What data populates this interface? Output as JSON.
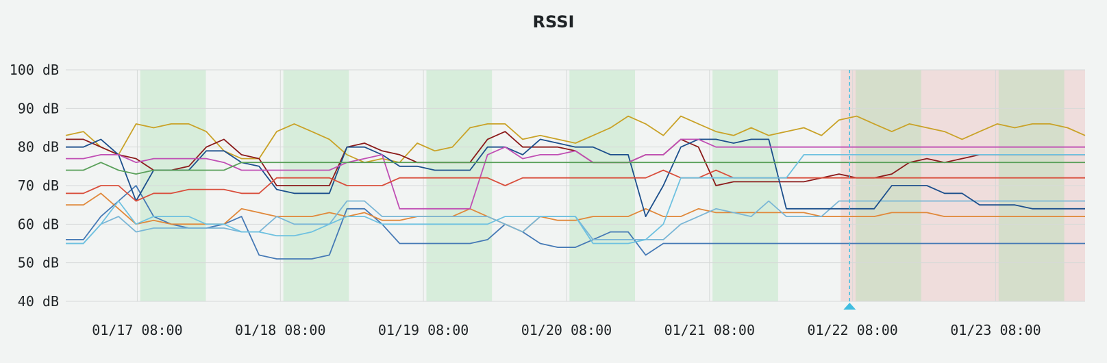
{
  "chart_data": {
    "type": "line",
    "title": "RSSI",
    "xlabel": "",
    "ylabel": "",
    "y_unit": "dB",
    "ylim": [
      40,
      100
    ],
    "y_ticks": [
      "100 dB",
      "90 dB",
      "80 dB",
      "70 dB",
      "60 dB",
      "50 dB",
      "40 dB"
    ],
    "y_tick_values": [
      100,
      90,
      80,
      70,
      60,
      50,
      40
    ],
    "x_range": [
      "2024-01-16T20:00",
      "2024-01-23T23:00"
    ],
    "x_ticks": [
      "01/17 08:00",
      "01/18 08:00",
      "01/19 08:00",
      "01/20 08:00",
      "01/21 08:00",
      "01/22 08:00",
      "01/23 08:00"
    ],
    "x_tick_times": [
      "2024-01-17T08:00",
      "2024-01-18T08:00",
      "2024-01-19T08:00",
      "2024-01-20T08:00",
      "2024-01-21T08:00",
      "2024-01-22T08:00",
      "2024-01-23T08:00"
    ],
    "grid": true,
    "legend": "none",
    "green_bands": [
      [
        "2024-01-17T08:30",
        "2024-01-17T19:30"
      ],
      [
        "2024-01-18T08:30",
        "2024-01-18T19:30"
      ],
      [
        "2024-01-19T08:30",
        "2024-01-19T19:30"
      ],
      [
        "2024-01-20T08:30",
        "2024-01-20T19:30"
      ],
      [
        "2024-01-21T08:30",
        "2024-01-21T19:30"
      ],
      [
        "2024-01-22T08:30",
        "2024-01-22T19:30"
      ],
      [
        "2024-01-23T08:30",
        "2024-01-23T19:30"
      ]
    ],
    "red_bands": [
      [
        "2024-01-22T06:00",
        "2024-01-23T23:00"
      ]
    ],
    "cursor_time": "2024-01-22T07:30",
    "series_colors": [
      "#c9a227",
      "#4579b5",
      "#e0883a",
      "#7ab6d6",
      "#8b1a1a",
      "#1c4f8c",
      "#c04fb4",
      "#d94f3d",
      "#5aa05a",
      "#6ec1e0"
    ],
    "series": [
      {
        "values": [
          83,
          84,
          80,
          78,
          86,
          85,
          86,
          86,
          84,
          79,
          77,
          77,
          84,
          86,
          84,
          82,
          78,
          76,
          77,
          76,
          81,
          79,
          80,
          85,
          86,
          86,
          82,
          83,
          82,
          81,
          83,
          85,
          88,
          86,
          83,
          88,
          86,
          84,
          83,
          85,
          83,
          84,
          85,
          83,
          87,
          88,
          86,
          84,
          86,
          85,
          84,
          82,
          84,
          86,
          85,
          86,
          86,
          85,
          83
        ]
      },
      {
        "values": [
          56,
          56,
          62,
          66,
          70,
          62,
          60,
          59,
          59,
          60,
          62,
          52,
          51,
          51,
          51,
          52,
          64,
          64,
          60,
          55,
          55,
          55,
          55,
          55,
          56,
          60,
          58,
          55,
          54,
          54,
          56,
          58,
          58,
          52,
          55,
          55,
          55,
          55,
          55,
          55,
          55,
          55,
          55,
          55,
          55,
          55,
          55,
          55,
          55,
          55,
          55,
          55,
          55,
          55,
          55,
          55,
          55,
          55,
          55
        ]
      },
      {
        "values": [
          65,
          65,
          68,
          64,
          60,
          61,
          60,
          60,
          60,
          60,
          64,
          63,
          62,
          62,
          62,
          63,
          62,
          63,
          61,
          61,
          62,
          62,
          62,
          64,
          62,
          60,
          58,
          62,
          61,
          61,
          62,
          62,
          62,
          64,
          62,
          62,
          64,
          63,
          63,
          63,
          63,
          63,
          63,
          62,
          62,
          62,
          62,
          63,
          63,
          63,
          62,
          62,
          62,
          62,
          62,
          62,
          62,
          62,
          62
        ]
      },
      {
        "values": [
          55,
          55,
          60,
          62,
          58,
          59,
          59,
          59,
          59,
          59,
          58,
          58,
          62,
          60,
          60,
          60,
          66,
          66,
          62,
          62,
          62,
          62,
          62,
          62,
          62,
          60,
          58,
          62,
          62,
          62,
          56,
          56,
          56,
          56,
          56,
          60,
          62,
          64,
          63,
          62,
          66,
          62,
          62,
          62,
          66,
          66,
          66,
          66,
          66,
          66,
          66,
          66,
          66,
          66,
          66,
          66,
          66,
          66,
          66
        ]
      },
      {
        "values": [
          82,
          82,
          80,
          78,
          77,
          74,
          74,
          75,
          80,
          82,
          78,
          77,
          70,
          70,
          70,
          70,
          80,
          81,
          79,
          78,
          76,
          76,
          76,
          76,
          82,
          84,
          80,
          80,
          80,
          79,
          76,
          76,
          76,
          78,
          78,
          82,
          80,
          70,
          71,
          71,
          71,
          71,
          71,
          72,
          73,
          72,
          72,
          73,
          76,
          77,
          76,
          77,
          78,
          78,
          78,
          78,
          78,
          78,
          78
        ]
      },
      {
        "values": [
          80,
          80,
          82,
          78,
          66,
          74,
          74,
          74,
          79,
          79,
          76,
          75,
          69,
          68,
          68,
          68,
          80,
          80,
          78,
          75,
          75,
          74,
          74,
          74,
          80,
          80,
          78,
          82,
          81,
          80,
          80,
          78,
          78,
          62,
          70,
          80,
          82,
          82,
          81,
          82,
          82,
          64,
          64,
          64,
          64,
          64,
          64,
          70,
          70,
          70,
          68,
          68,
          65,
          65,
          65,
          64,
          64,
          64,
          64
        ]
      },
      {
        "values": [
          77,
          77,
          78,
          78,
          76,
          77,
          77,
          77,
          77,
          76,
          74,
          74,
          74,
          74,
          74,
          74,
          76,
          77,
          78,
          64,
          64,
          64,
          64,
          64,
          78,
          80,
          77,
          78,
          78,
          79,
          76,
          76,
          76,
          78,
          78,
          82,
          82,
          80,
          80,
          80,
          80,
          80,
          80,
          80,
          80,
          80,
          80,
          80,
          80,
          80,
          80,
          80,
          80,
          80,
          80,
          80,
          80,
          80,
          80
        ]
      },
      {
        "values": [
          68,
          68,
          70,
          70,
          66,
          68,
          68,
          69,
          69,
          69,
          68,
          68,
          72,
          72,
          72,
          72,
          70,
          70,
          70,
          72,
          72,
          72,
          72,
          72,
          72,
          70,
          72,
          72,
          72,
          72,
          72,
          72,
          72,
          72,
          74,
          72,
          72,
          74,
          72,
          72,
          72,
          72,
          72,
          72,
          72,
          72,
          72,
          72,
          72,
          72,
          72,
          72,
          72,
          72,
          72,
          72,
          72,
          72,
          72
        ]
      },
      {
        "values": [
          74,
          74,
          76,
          74,
          73,
          74,
          74,
          74,
          74,
          74,
          76,
          76,
          76,
          76,
          76,
          76,
          76,
          76,
          76,
          76,
          76,
          76,
          76,
          76,
          76,
          76,
          76,
          76,
          76,
          76,
          76,
          76,
          76,
          76,
          76,
          76,
          76,
          76,
          76,
          76,
          76,
          76,
          76,
          76,
          76,
          76,
          76,
          76,
          76,
          76,
          76,
          76,
          76,
          76,
          76,
          76,
          76,
          76,
          76
        ]
      },
      {
        "values": [
          55,
          55,
          60,
          66,
          60,
          62,
          62,
          62,
          60,
          60,
          58,
          58,
          57,
          57,
          58,
          60,
          62,
          62,
          60,
          60,
          60,
          60,
          60,
          60,
          60,
          62,
          62,
          62,
          62,
          62,
          55,
          55,
          55,
          56,
          60,
          72,
          72,
          72,
          72,
          72,
          72,
          72,
          78,
          78,
          78,
          78,
          78,
          78,
          78,
          78,
          78,
          78,
          78,
          78,
          78,
          78,
          78,
          78,
          78
        ]
      }
    ]
  }
}
